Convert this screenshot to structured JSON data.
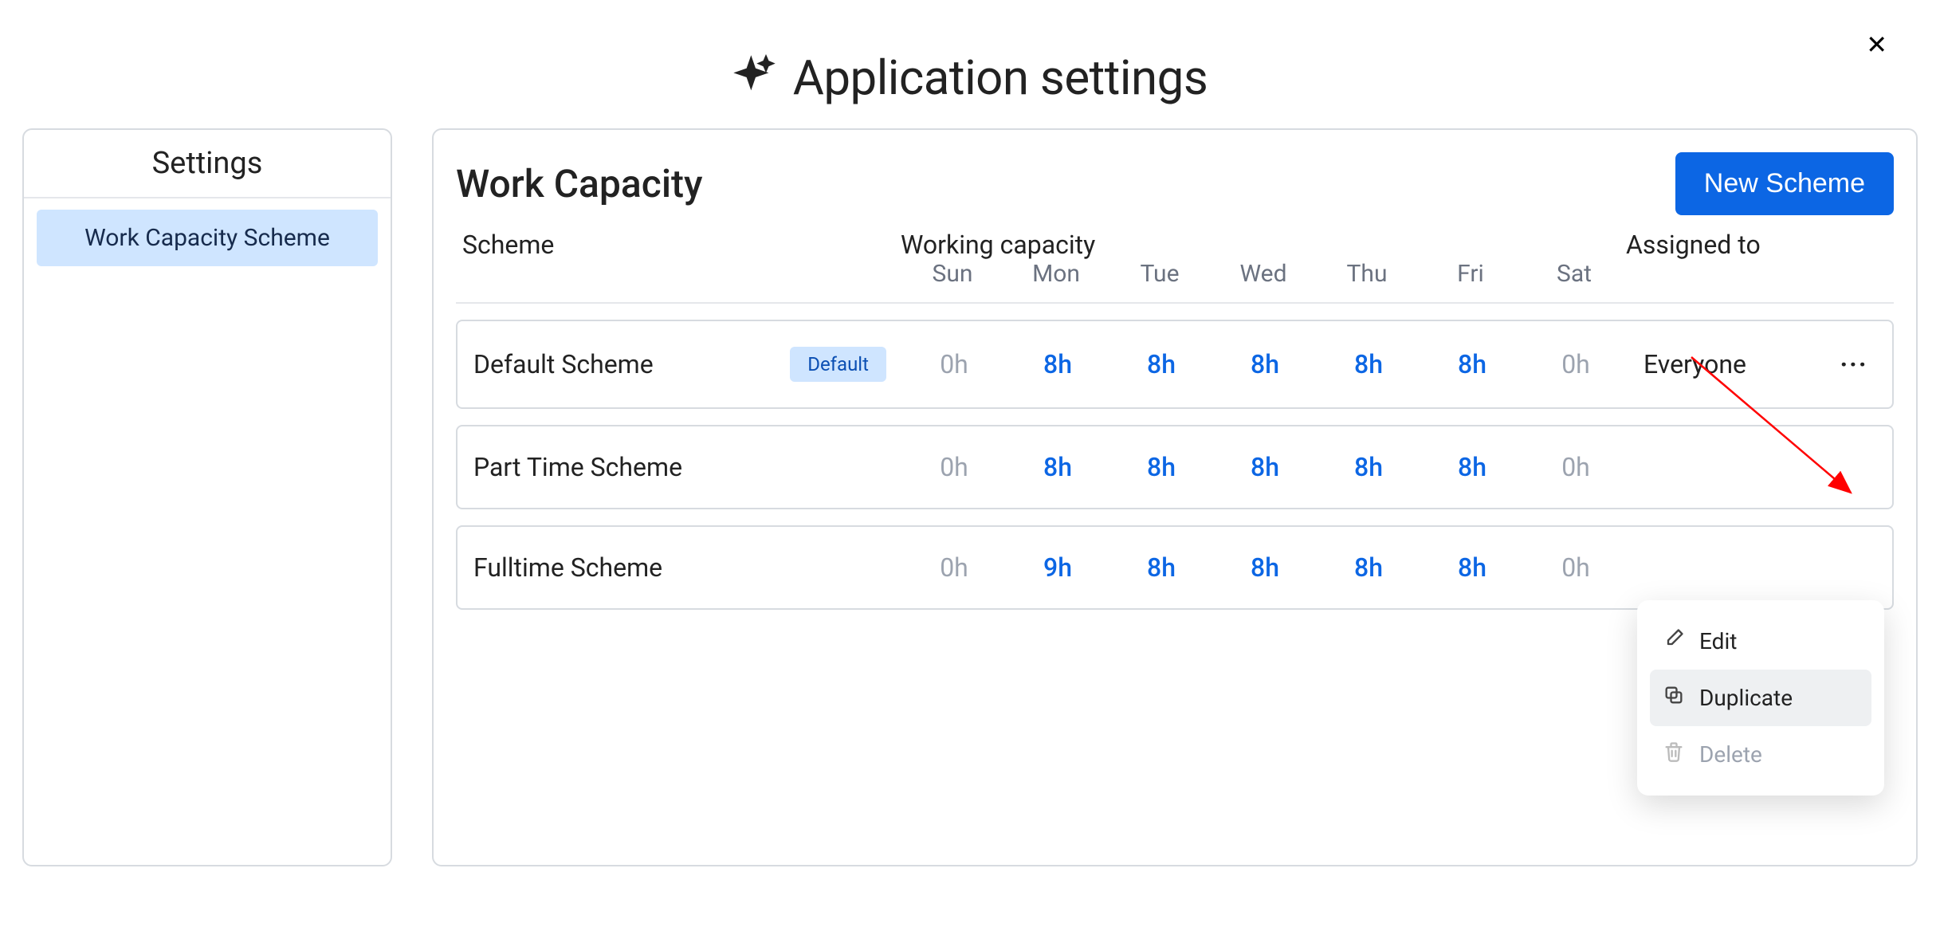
{
  "page_title": "Application settings",
  "close_icon": "✕",
  "sidebar": {
    "title": "Settings",
    "items": [
      {
        "label": "Work Capacity Scheme",
        "active": true
      }
    ]
  },
  "panel": {
    "title": "Work Capacity",
    "new_button": "New Scheme",
    "columns": {
      "scheme": "Scheme",
      "working_capacity": "Working capacity",
      "assigned_to": "Assigned to",
      "days": [
        "Sun",
        "Mon",
        "Tue",
        "Wed",
        "Thu",
        "Fri",
        "Sat"
      ]
    },
    "default_badge": "Default",
    "rows": [
      {
        "name": "Default Scheme",
        "is_default": true,
        "hours": [
          "0h",
          "8h",
          "8h",
          "8h",
          "8h",
          "8h",
          "0h"
        ],
        "working": [
          false,
          true,
          true,
          true,
          true,
          true,
          false
        ],
        "assigned": "Everyone"
      },
      {
        "name": "Part Time Scheme",
        "is_default": false,
        "hours": [
          "0h",
          "8h",
          "8h",
          "8h",
          "8h",
          "8h",
          "0h"
        ],
        "working": [
          false,
          true,
          true,
          true,
          true,
          true,
          false
        ],
        "assigned": ""
      },
      {
        "name": "Fulltime Scheme",
        "is_default": false,
        "hours": [
          "0h",
          "9h",
          "8h",
          "8h",
          "8h",
          "8h",
          "0h"
        ],
        "working": [
          false,
          true,
          true,
          true,
          true,
          true,
          false
        ],
        "assigned": ""
      }
    ]
  },
  "context_menu": {
    "items": [
      {
        "label": "Edit",
        "icon": "edit",
        "state": "normal"
      },
      {
        "label": "Duplicate",
        "icon": "duplicate",
        "state": "hover"
      },
      {
        "label": "Delete",
        "icon": "delete",
        "state": "disabled"
      }
    ]
  },
  "colors": {
    "accent_blue": "#0c66e4",
    "text_muted": "#6b7280",
    "text_faint": "#9ca3af",
    "sidebar_active_bg": "#cfe5ff",
    "border": "#d7dbe0",
    "arrow": "#ff0000"
  }
}
